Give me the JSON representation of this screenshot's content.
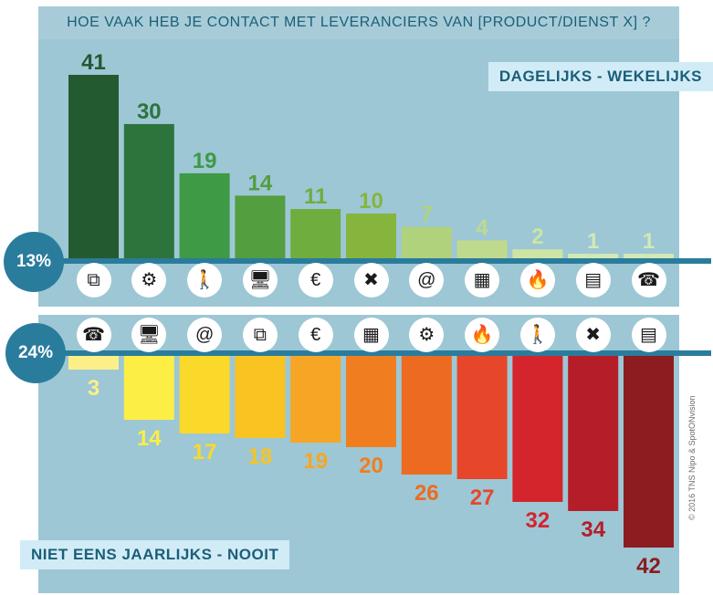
{
  "title": "HOE VAAK HEB JE CONTACT MET LEVERANCIERS VAN [PRODUCT/DIENST X] ?",
  "copyright": "© 2016 TNS Nipo & SpotONvision",
  "chart_data": [
    {
      "type": "bar",
      "name": "DAGELIJKS - WEKELIJKS",
      "percentage": "13%",
      "categories": [
        "management-icon",
        "computer-settings-icon",
        "walking-person-icon",
        "computer-mouse-icon",
        "euro-coins-icon",
        "tools-icon",
        "mobile-email-icon",
        "office-person-icon",
        "building-fire-icon",
        "calculator-icon",
        "phone-icon"
      ],
      "values": [
        41,
        30,
        19,
        14,
        11,
        10,
        7,
        4,
        2,
        1,
        1
      ],
      "colors": [
        "#235a30",
        "#2d743c",
        "#3e9a45",
        "#539e3f",
        "#6fad3f",
        "#85b53d",
        "#b1d27d",
        "#bfda8c",
        "#cce5a4",
        "#d3e9b4",
        "#d3e9b4"
      ],
      "ylim": [
        0,
        41
      ]
    },
    {
      "type": "bar",
      "name": "NIET EENS JAARLIJKS - NOOIT",
      "percentage": "24%",
      "categories": [
        "phone-icon",
        "computer-mouse-icon",
        "mobile-email-icon",
        "management-icon",
        "euro-coins-icon",
        "office-person-icon",
        "computer-settings-icon",
        "building-fire-icon",
        "walking-person-icon",
        "tools-icon",
        "calculator-icon"
      ],
      "values": [
        3,
        14,
        17,
        18,
        19,
        20,
        26,
        27,
        32,
        34,
        42
      ],
      "colors": [
        "#fcef88",
        "#fcee45",
        "#fbd92b",
        "#f9c321",
        "#f6a624",
        "#f07e21",
        "#ec6b21",
        "#e6472a",
        "#d4252c",
        "#b51d29",
        "#8c1c1f"
      ],
      "ylim": [
        0,
        42
      ]
    }
  ]
}
